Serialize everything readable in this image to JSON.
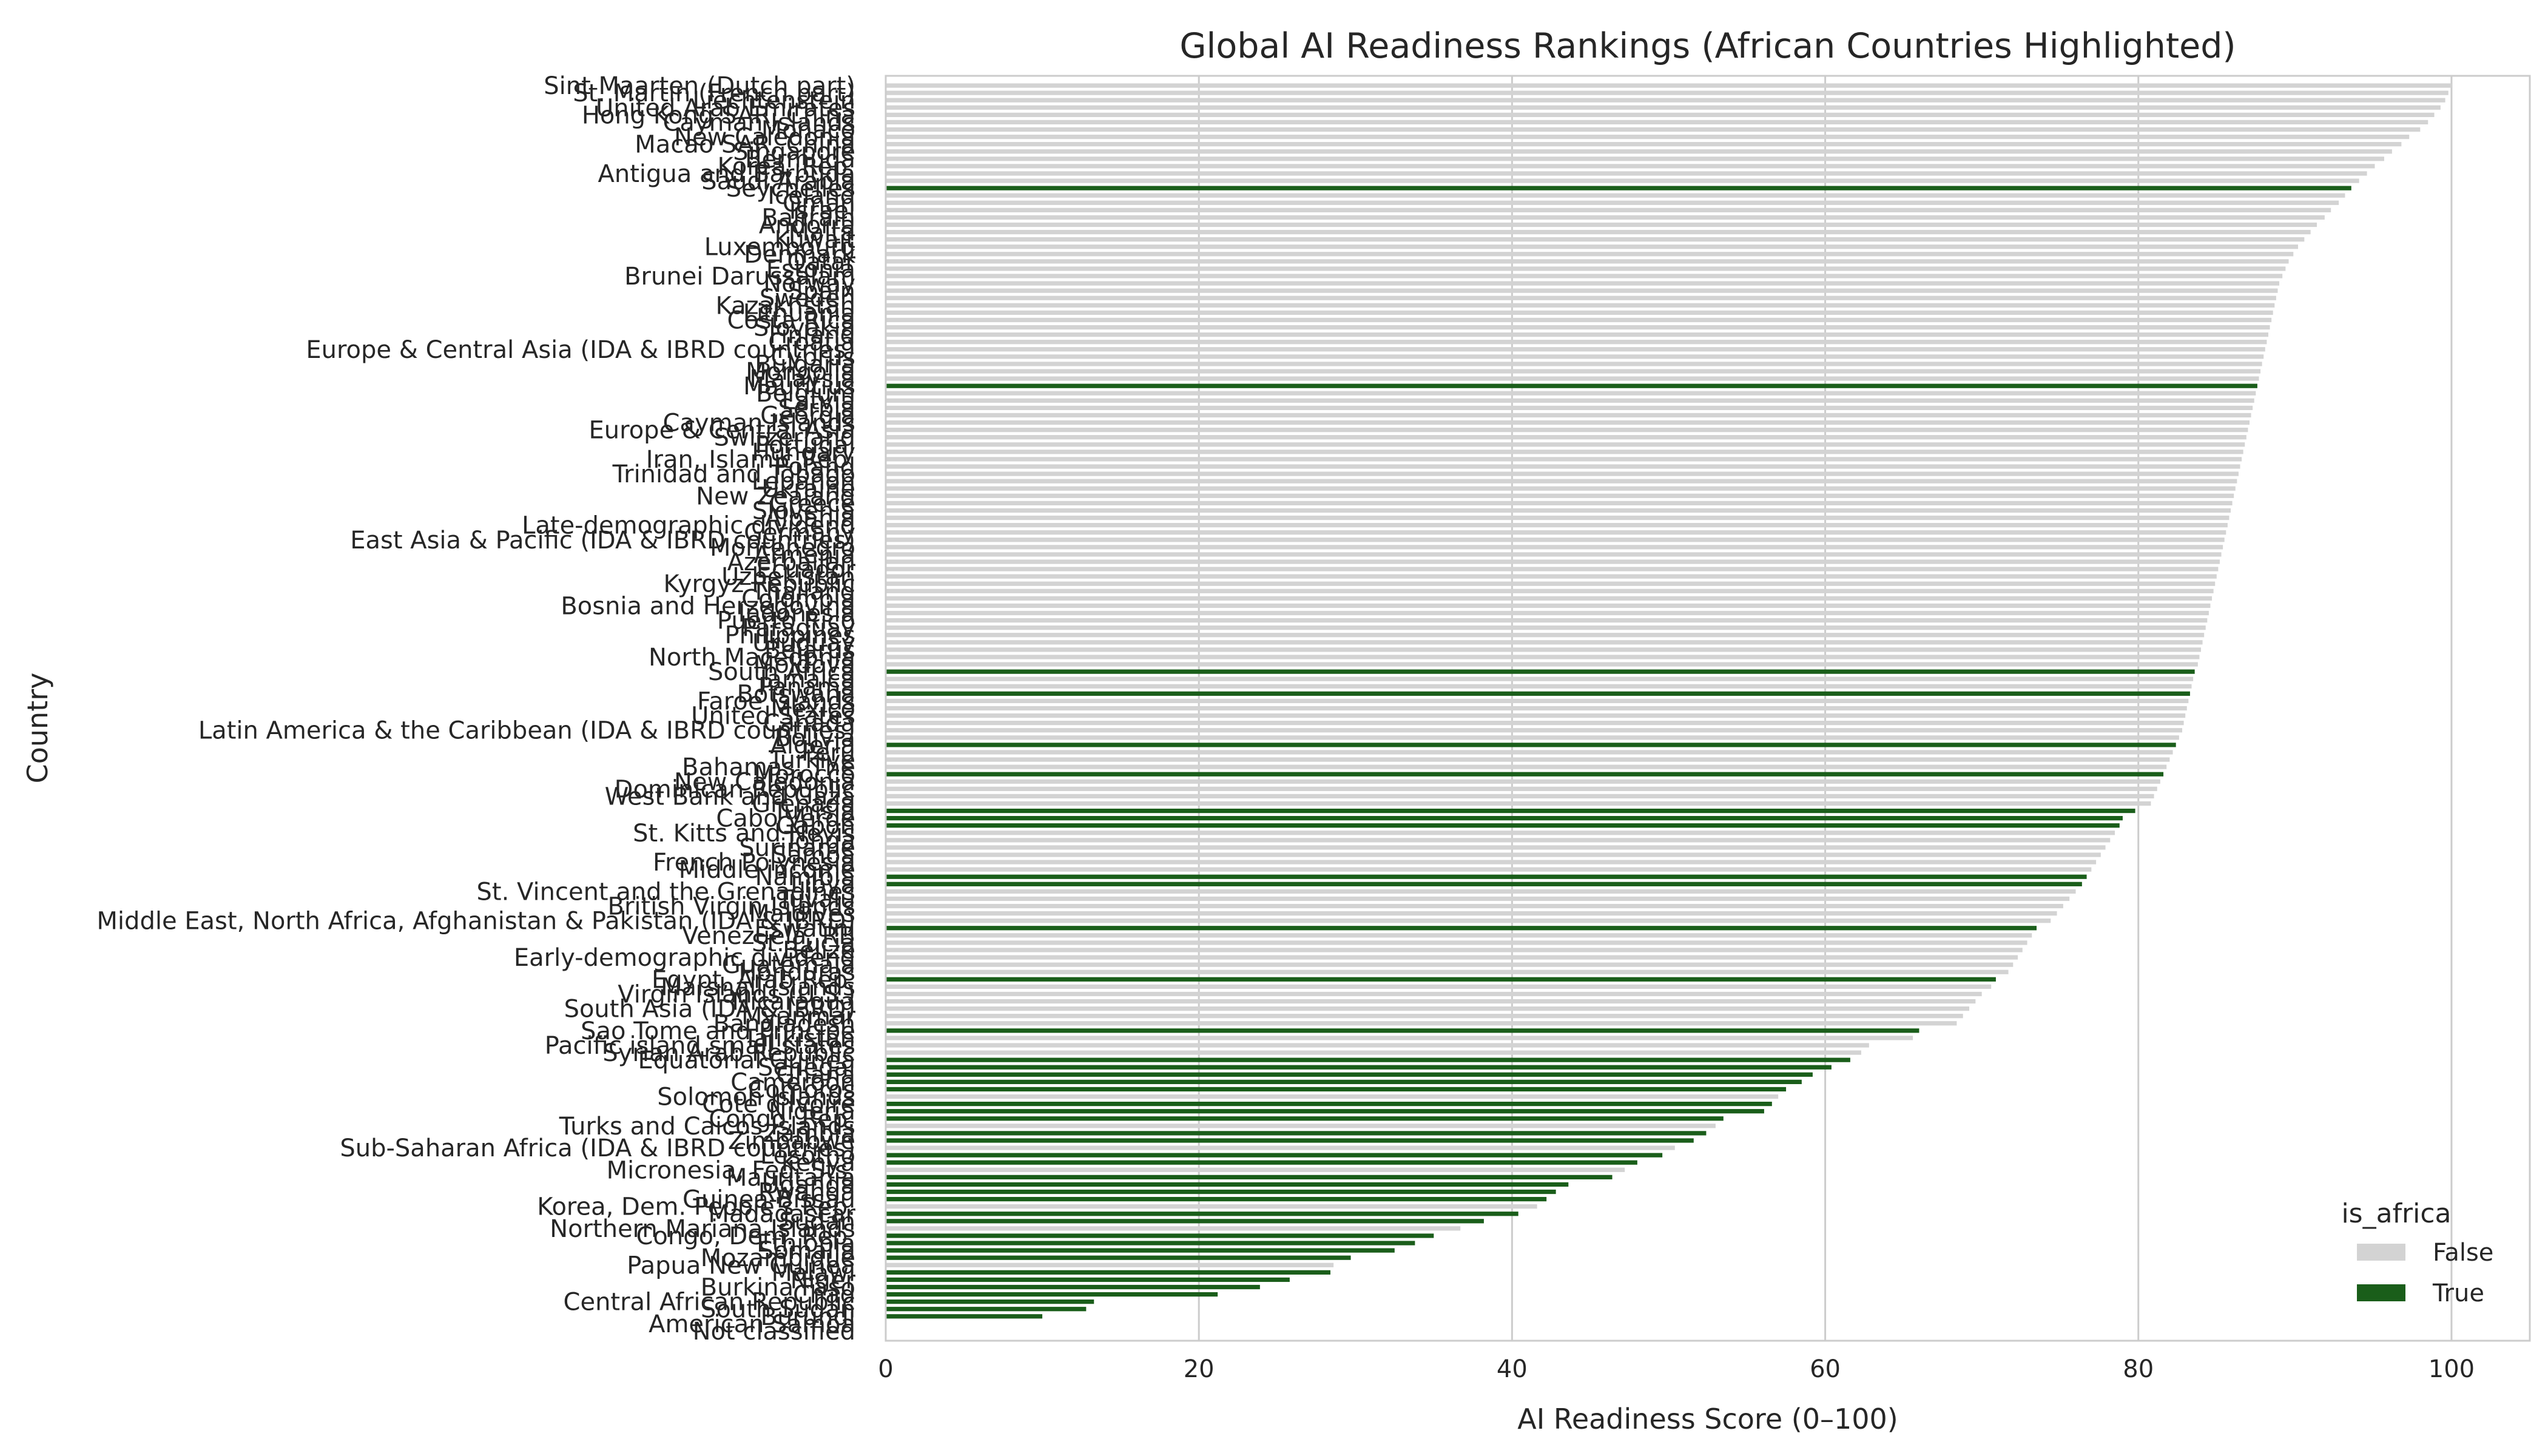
{
  "chart_data": {
    "type": "bar",
    "orientation": "horizontal",
    "title": "Global AI Readiness Rankings (African Countries Highlighted)",
    "xlabel": "AI Readiness Score (0–100)",
    "ylabel": "Country",
    "xlim": [
      0,
      105
    ],
    "xticks": [
      0,
      20,
      40,
      60,
      80,
      100
    ],
    "grid": "x",
    "legend": {
      "title": "is_africa",
      "position": "bottom-right",
      "entries": [
        {
          "label": "False",
          "color": "#d3d3d3"
        },
        {
          "label": "True",
          "color": "#1a5e1a"
        }
      ]
    },
    "colors": {
      "false": "#d3d3d3",
      "true": "#1a5e1a"
    },
    "bars": [
      {
        "country": "Sint Maarten (Dutch part)",
        "value": 100.0,
        "africa": false
      },
      {
        "country": "St. Martin (French part)",
        "value": 99.8,
        "africa": false
      },
      {
        "country": "Liechtenstein",
        "value": 99.6,
        "africa": false
      },
      {
        "country": "United Arab Emirates",
        "value": 99.3,
        "africa": false
      },
      {
        "country": "Hong Kong SAR, China",
        "value": 98.9,
        "africa": false
      },
      {
        "country": "Cayman Islands",
        "value": 98.5,
        "africa": false
      },
      {
        "country": "Monaco",
        "value": 98.0,
        "africa": false
      },
      {
        "country": "New Caledonia",
        "value": 97.3,
        "africa": false
      },
      {
        "country": "Macao SAR, China",
        "value": 96.8,
        "africa": false
      },
      {
        "country": "Singapore",
        "value": 96.2,
        "africa": false
      },
      {
        "country": "Bermuda",
        "value": 95.7,
        "africa": false
      },
      {
        "country": "Korea, Rep.",
        "value": 95.1,
        "africa": false
      },
      {
        "country": "Antigua and Barbuda",
        "value": 94.6,
        "africa": false
      },
      {
        "country": "Saudi Arabia",
        "value": 94.1,
        "africa": false
      },
      {
        "country": "Seychelles",
        "value": 93.6,
        "africa": true
      },
      {
        "country": "Iceland",
        "value": 93.2,
        "africa": false
      },
      {
        "country": "Oman",
        "value": 92.8,
        "africa": false
      },
      {
        "country": "Israel",
        "value": 92.3,
        "africa": false
      },
      {
        "country": "Bahrain",
        "value": 91.9,
        "africa": false
      },
      {
        "country": "Andorra",
        "value": 91.4,
        "africa": false
      },
      {
        "country": "Malta",
        "value": 91.0,
        "africa": false
      },
      {
        "country": "Kuwait",
        "value": 90.6,
        "africa": false
      },
      {
        "country": "Luxembourg",
        "value": 90.2,
        "africa": false
      },
      {
        "country": "Denmark",
        "value": 89.9,
        "africa": false
      },
      {
        "country": "Qatar",
        "value": 89.6,
        "africa": false
      },
      {
        "country": "Estonia",
        "value": 89.4,
        "africa": false
      },
      {
        "country": "Brunei Darussalam",
        "value": 89.2,
        "africa": false
      },
      {
        "country": "Norway",
        "value": 89.0,
        "africa": false
      },
      {
        "country": "Spain",
        "value": 88.9,
        "africa": false
      },
      {
        "country": "Sweden",
        "value": 88.8,
        "africa": false
      },
      {
        "country": "Kazakhstan",
        "value": 88.7,
        "africa": false
      },
      {
        "country": "Lithuania",
        "value": 88.6,
        "africa": false
      },
      {
        "country": "Costa Rica",
        "value": 88.5,
        "africa": false
      },
      {
        "country": "Slovakia",
        "value": 88.4,
        "africa": false
      },
      {
        "country": "Finland",
        "value": 88.3,
        "africa": false
      },
      {
        "country": "Croatia",
        "value": 88.2,
        "africa": false
      },
      {
        "country": "Europe & Central Asia (IDA & IBRD countries)",
        "value": 88.1,
        "africa": false
      },
      {
        "country": "Cyprus",
        "value": 88.0,
        "africa": false
      },
      {
        "country": "Bulgaria",
        "value": 87.9,
        "africa": false
      },
      {
        "country": "Mongolia",
        "value": 87.8,
        "africa": false
      },
      {
        "country": "Malaysia",
        "value": 87.7,
        "africa": false
      },
      {
        "country": "Mauritius",
        "value": 87.6,
        "africa": true
      },
      {
        "country": "Belgium",
        "value": 87.5,
        "africa": false
      },
      {
        "country": "Latvia",
        "value": 87.4,
        "africa": false
      },
      {
        "country": "Serbia",
        "value": 87.3,
        "africa": false
      },
      {
        "country": "Georgia",
        "value": 87.2,
        "africa": false
      },
      {
        "country": "Cayman Islands",
        "value": 87.1,
        "africa": false
      },
      {
        "country": "Europe & Central Asia",
        "value": 87.0,
        "africa": false
      },
      {
        "country": "Switzerland",
        "value": 86.9,
        "africa": false
      },
      {
        "country": "Portugal",
        "value": 86.8,
        "africa": false
      },
      {
        "country": "Hungary",
        "value": 86.7,
        "africa": false
      },
      {
        "country": "Iran, Islamic Rep.",
        "value": 86.6,
        "africa": false
      },
      {
        "country": "Poland",
        "value": 86.5,
        "africa": false
      },
      {
        "country": "Trinidad and Tobago",
        "value": 86.4,
        "africa": false
      },
      {
        "country": "Lebanon",
        "value": 86.3,
        "africa": false
      },
      {
        "country": "Ukraine",
        "value": 86.2,
        "africa": false
      },
      {
        "country": "New Zealand",
        "value": 86.1,
        "africa": false
      },
      {
        "country": "Greece",
        "value": 86.0,
        "africa": false
      },
      {
        "country": "Slovenia",
        "value": 85.9,
        "africa": false
      },
      {
        "country": "Albania",
        "value": 85.8,
        "africa": false
      },
      {
        "country": "Late-demographic dividend",
        "value": 85.7,
        "africa": false
      },
      {
        "country": "Germany",
        "value": 85.6,
        "africa": false
      },
      {
        "country": "East Asia & Pacific (IDA & IBRD countries)",
        "value": 85.5,
        "africa": false
      },
      {
        "country": "Montenegro",
        "value": 85.4,
        "africa": false
      },
      {
        "country": "Armenia",
        "value": 85.3,
        "africa": false
      },
      {
        "country": "Azerbaijan",
        "value": 85.2,
        "africa": false
      },
      {
        "country": "Ecuador",
        "value": 85.1,
        "africa": false
      },
      {
        "country": "Uzbekistan",
        "value": 85.0,
        "africa": false
      },
      {
        "country": "Kyrgyz Republic",
        "value": 84.9,
        "africa": false
      },
      {
        "country": "Thailand",
        "value": 84.8,
        "africa": false
      },
      {
        "country": "Colombia",
        "value": 84.7,
        "africa": false
      },
      {
        "country": "Bosnia and Herzegovina",
        "value": 84.6,
        "africa": false
      },
      {
        "country": "Indonesia",
        "value": 84.5,
        "africa": false
      },
      {
        "country": "Puerto Rico",
        "value": 84.4,
        "africa": false
      },
      {
        "country": "Paraguay",
        "value": 84.3,
        "africa": false
      },
      {
        "country": "Philippines",
        "value": 84.2,
        "africa": false
      },
      {
        "country": "Uruguay",
        "value": 84.1,
        "africa": false
      },
      {
        "country": "Belarus",
        "value": 84.0,
        "africa": false
      },
      {
        "country": "North Macedonia",
        "value": 83.9,
        "africa": false
      },
      {
        "country": "Moldova",
        "value": 83.8,
        "africa": false
      },
      {
        "country": "South Africa",
        "value": 83.6,
        "africa": true
      },
      {
        "country": "Jamaica",
        "value": 83.5,
        "africa": false
      },
      {
        "country": "Panama",
        "value": 83.4,
        "africa": false
      },
      {
        "country": "Botswana",
        "value": 83.3,
        "africa": true
      },
      {
        "country": "Faroe Islands",
        "value": 83.2,
        "africa": false
      },
      {
        "country": "Mexico",
        "value": 83.1,
        "africa": false
      },
      {
        "country": "United States",
        "value": 83.0,
        "africa": false
      },
      {
        "country": "Canada",
        "value": 82.9,
        "africa": false
      },
      {
        "country": "Latin America & the Caribbean (IDA & IBRD countries)",
        "value": 82.8,
        "africa": false
      },
      {
        "country": "Bolivia",
        "value": 82.6,
        "africa": false
      },
      {
        "country": "Algeria",
        "value": 82.4,
        "africa": true
      },
      {
        "country": "Peru",
        "value": 82.2,
        "africa": false
      },
      {
        "country": "Turkiye",
        "value": 82.0,
        "africa": false
      },
      {
        "country": "Bahamas, The",
        "value": 81.8,
        "africa": false
      },
      {
        "country": "Morocco",
        "value": 81.6,
        "africa": true
      },
      {
        "country": "New Caledonia",
        "value": 81.4,
        "africa": false
      },
      {
        "country": "Dominican Republic",
        "value": 81.2,
        "africa": false
      },
      {
        "country": "West Bank and Gaza",
        "value": 81.0,
        "africa": false
      },
      {
        "country": "Grenada",
        "value": 80.8,
        "africa": false
      },
      {
        "country": "Tunisia",
        "value": 79.8,
        "africa": true
      },
      {
        "country": "Cabo Verde",
        "value": 79.0,
        "africa": true
      },
      {
        "country": "Gabon",
        "value": 78.8,
        "africa": true
      },
      {
        "country": "St. Kitts and Nevis",
        "value": 78.5,
        "africa": false
      },
      {
        "country": "Tonga",
        "value": 78.2,
        "africa": false
      },
      {
        "country": "Suriname",
        "value": 77.9,
        "africa": false
      },
      {
        "country": "Samoa",
        "value": 77.6,
        "africa": false
      },
      {
        "country": "French Polynesia",
        "value": 77.3,
        "africa": false
      },
      {
        "country": "Middle income",
        "value": 77.0,
        "africa": false
      },
      {
        "country": "Namibia",
        "value": 76.7,
        "africa": true
      },
      {
        "country": "Libya",
        "value": 76.4,
        "africa": true
      },
      {
        "country": "St. Vincent and the Grenadines",
        "value": 76.0,
        "africa": false
      },
      {
        "country": "Tuvalu",
        "value": 75.6,
        "africa": false
      },
      {
        "country": "British Virgin Islands",
        "value": 75.2,
        "africa": false
      },
      {
        "country": "Maldives",
        "value": 74.8,
        "africa": false
      },
      {
        "country": "Middle East, North Africa, Afghanistan & Pakistan (IDA & IBRD)",
        "value": 74.4,
        "africa": false
      },
      {
        "country": "Eswatini",
        "value": 73.5,
        "africa": true
      },
      {
        "country": "Venezuela, RB",
        "value": 73.2,
        "africa": false
      },
      {
        "country": "St. Lucia",
        "value": 72.9,
        "africa": false
      },
      {
        "country": "Belize",
        "value": 72.6,
        "africa": false
      },
      {
        "country": "Early-demographic dividend",
        "value": 72.3,
        "africa": false
      },
      {
        "country": "Guatemala",
        "value": 72.0,
        "africa": false
      },
      {
        "country": "Honduras",
        "value": 71.7,
        "africa": false
      },
      {
        "country": "Egypt, Arab Rep.",
        "value": 70.9,
        "africa": true
      },
      {
        "country": "Marshall Islands",
        "value": 70.6,
        "africa": false
      },
      {
        "country": "Virgin Islands (U.S.)",
        "value": 70.0,
        "africa": false
      },
      {
        "country": "Nicaragua",
        "value": 69.6,
        "africa": false
      },
      {
        "country": "South Asia (IDA & IBRD)",
        "value": 69.2,
        "africa": false
      },
      {
        "country": "Myanmar",
        "value": 68.8,
        "africa": false
      },
      {
        "country": "Bangladesh",
        "value": 68.4,
        "africa": false
      },
      {
        "country": "Sao Tome and Principe",
        "value": 66.0,
        "africa": true
      },
      {
        "country": "Tajikistan",
        "value": 65.6,
        "africa": false
      },
      {
        "country": "Pacific island small states",
        "value": 62.8,
        "africa": false
      },
      {
        "country": "Syrian Arab Republic",
        "value": 62.3,
        "africa": false
      },
      {
        "country": "Equatorial Guinea",
        "value": 61.6,
        "africa": true
      },
      {
        "country": "Senegal",
        "value": 60.4,
        "africa": true
      },
      {
        "country": "Ghana",
        "value": 59.2,
        "africa": true
      },
      {
        "country": "Cameroon",
        "value": 58.5,
        "africa": true
      },
      {
        "country": "Comoros",
        "value": 57.5,
        "africa": true
      },
      {
        "country": "Solomon Islands",
        "value": 57.0,
        "africa": false
      },
      {
        "country": "Cote d'Ivoire",
        "value": 56.6,
        "africa": true
      },
      {
        "country": "Nigeria",
        "value": 56.1,
        "africa": true
      },
      {
        "country": "Congo, Rep.",
        "value": 53.5,
        "africa": true
      },
      {
        "country": "Turks and Caicos Islands",
        "value": 53.0,
        "africa": false
      },
      {
        "country": "Zambia",
        "value": 52.4,
        "africa": true
      },
      {
        "country": "Zimbabwe",
        "value": 51.6,
        "africa": true
      },
      {
        "country": "Sub-Saharan Africa (IDA & IBRD countries)",
        "value": 50.4,
        "africa": false
      },
      {
        "country": "Lesotho",
        "value": 49.6,
        "africa": true
      },
      {
        "country": "Kenya",
        "value": 48.0,
        "africa": true
      },
      {
        "country": "Micronesia, Fed. Sts.",
        "value": 47.2,
        "africa": false
      },
      {
        "country": "Mauritania",
        "value": 46.4,
        "africa": true
      },
      {
        "country": "Uganda",
        "value": 43.6,
        "africa": true
      },
      {
        "country": "Rwanda",
        "value": 42.8,
        "africa": true
      },
      {
        "country": "Guinea-Bissau",
        "value": 42.2,
        "africa": true
      },
      {
        "country": "Korea, Dem. People's Rep.",
        "value": 41.6,
        "africa": false
      },
      {
        "country": "Madagascar",
        "value": 40.4,
        "africa": true
      },
      {
        "country": "Sudan",
        "value": 38.2,
        "africa": true
      },
      {
        "country": "Northern Mariana Islands",
        "value": 36.7,
        "africa": false
      },
      {
        "country": "Congo, Dem. Rep.",
        "value": 35.0,
        "africa": true
      },
      {
        "country": "Ethiopia",
        "value": 33.8,
        "africa": true
      },
      {
        "country": "Somalia",
        "value": 32.5,
        "africa": true
      },
      {
        "country": "Mozambique",
        "value": 29.7,
        "africa": true
      },
      {
        "country": "Papua New Guinea",
        "value": 28.6,
        "africa": false
      },
      {
        "country": "Malawi",
        "value": 28.4,
        "africa": true
      },
      {
        "country": "Niger",
        "value": 25.8,
        "africa": true
      },
      {
        "country": "Burkina Faso",
        "value": 23.9,
        "africa": true
      },
      {
        "country": "Chad",
        "value": 21.2,
        "africa": true
      },
      {
        "country": "Central African Republic",
        "value": 13.3,
        "africa": true
      },
      {
        "country": "South Sudan",
        "value": 12.8,
        "africa": true
      },
      {
        "country": "Burundi",
        "value": 10.0,
        "africa": true
      },
      {
        "country": "American Samoa",
        "value": 0.0,
        "africa": false
      },
      {
        "country": "Not classified",
        "value": 0.0,
        "africa": false
      }
    ]
  }
}
